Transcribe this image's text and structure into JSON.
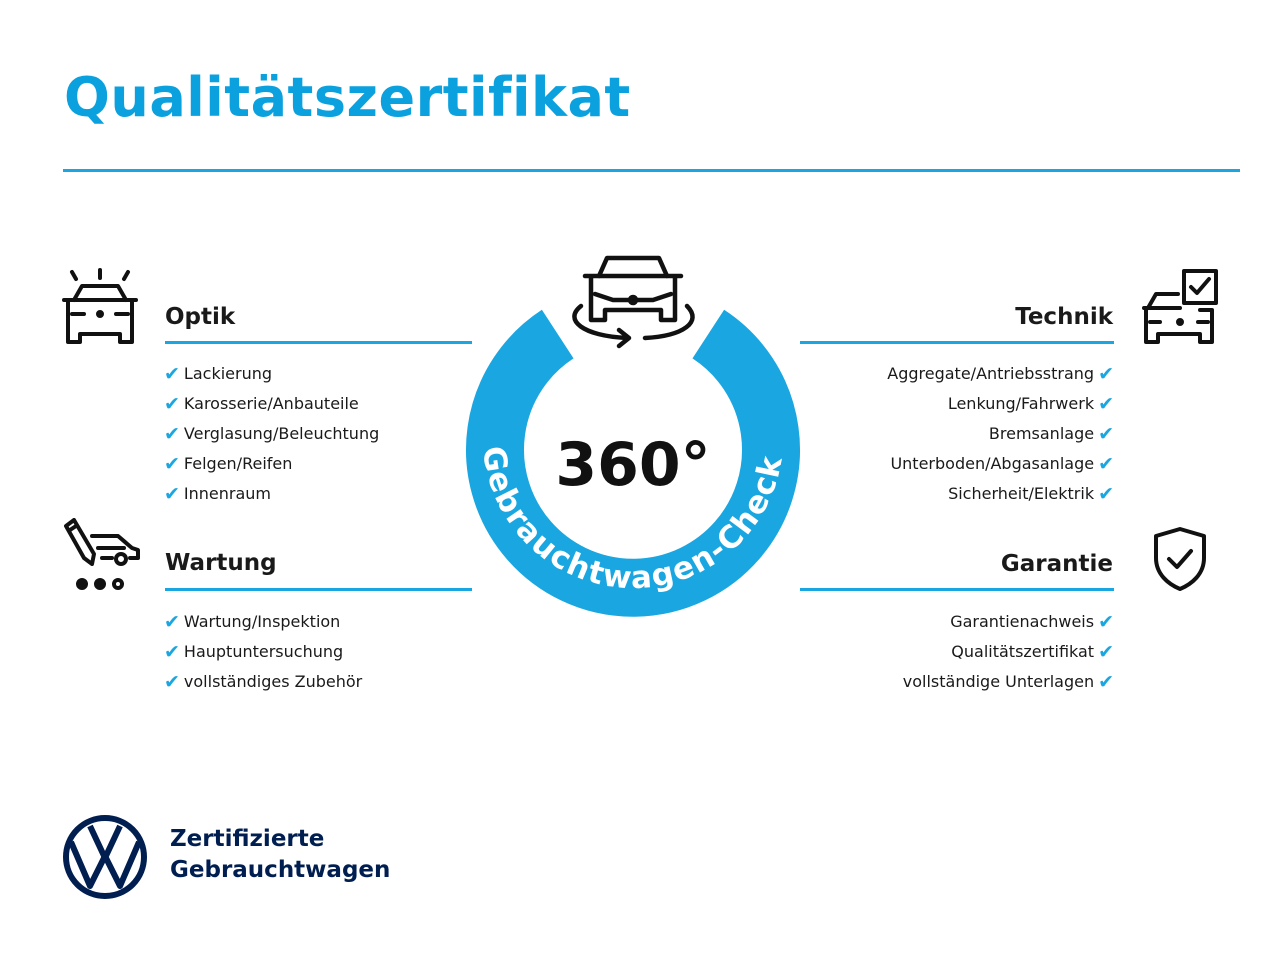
{
  "title": "Qualitätszertifikat",
  "colors": {
    "accent": "#1aa6e0",
    "title": "#0ba0de",
    "brand": "#001e50"
  },
  "center": {
    "degrees": "360°",
    "ring_text": "Gebrauchtwagen-Check",
    "icon": "car-rotate-icon"
  },
  "sections": {
    "optik": {
      "title": "Optik",
      "icon": "car-lights-icon",
      "items": [
        "Lackierung",
        "Karosserie/Anbauteile",
        "Verglasung/Beleuchtung",
        "Felgen/Reifen",
        "Innenraum"
      ]
    },
    "wartung": {
      "title": "Wartung",
      "icon": "service-van-icon",
      "items": [
        "Wartung/Inspektion",
        "Hauptuntersuchung",
        "vollständiges Zubehör"
      ]
    },
    "technik": {
      "title": "Technik",
      "icon": "car-checklist-icon",
      "items": [
        "Aggregate/Antriebsstrang",
        "Lenkung/Fahrwerk",
        "Bremsanlage",
        "Unterboden/Abgasanlage",
        "Sicherheit/Elektrik"
      ]
    },
    "garantie": {
      "title": "Garantie",
      "icon": "shield-check-icon",
      "items": [
        "Garantienachweis",
        "Qualitätszertifikat",
        "vollständige Unterlagen"
      ]
    }
  },
  "check_glyph": "✔",
  "brand": {
    "line1": "Zertifizierte",
    "line2": "Gebrauchtwagen",
    "logo": "vw-logo"
  }
}
